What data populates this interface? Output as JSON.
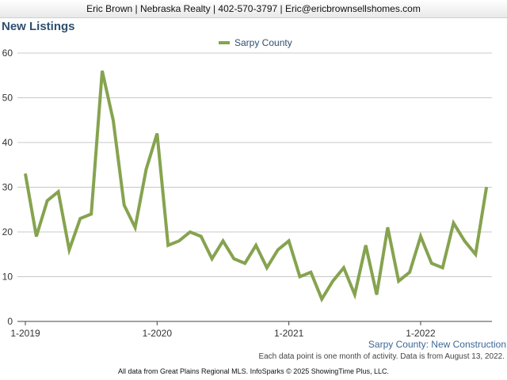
{
  "header": {
    "contact": "Eric Brown | Nebraska Realty | 402-570-3797 | Eric@ericbrownsellshomes.com"
  },
  "chart_data": {
    "type": "line",
    "title": "New Listings",
    "subtitle": "Sarpy County: New Construction",
    "xlabel": "",
    "ylabel": "",
    "ylim": [
      0,
      60
    ],
    "yticks": [
      "0",
      "10",
      "20",
      "30",
      "40",
      "50",
      "60"
    ],
    "xticks": [
      {
        "label": "1-2019",
        "index": 0
      },
      {
        "label": "1-2020",
        "index": 12
      },
      {
        "label": "1-2021",
        "index": 24
      },
      {
        "label": "1-2022",
        "index": 36
      }
    ],
    "grid": true,
    "legend_position": "top-center",
    "series": [
      {
        "name": "Sarpy County",
        "color": "#86a34f",
        "values": [
          33,
          19,
          27,
          29,
          16,
          23,
          24,
          56,
          45,
          26,
          21,
          34,
          42,
          17,
          18,
          20,
          19,
          14,
          18,
          14,
          13,
          17,
          12,
          16,
          18,
          10,
          11,
          5,
          9,
          12,
          6,
          17,
          6,
          21,
          9,
          11,
          19,
          13,
          12,
          22,
          18,
          15,
          30
        ]
      }
    ]
  },
  "notes": {
    "data_note": "Each data point is one month of activity. Data is from August 13, 2022.",
    "source": "All data from Great Plains Regional MLS. InfoSparks © 2025 ShowingTime Plus, LLC."
  }
}
